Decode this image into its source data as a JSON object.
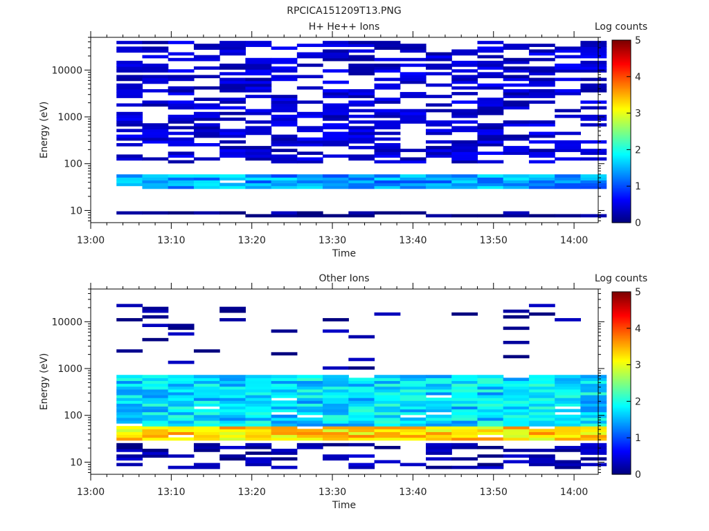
{
  "figure_title": "RPCICA151209T13.PNG",
  "colorbar_label": "Log counts",
  "colorbar_ticks": [
    "0",
    "1",
    "2",
    "3",
    "4",
    "5"
  ],
  "chart_data": [
    {
      "type": "heatmap",
      "title": "H+ He++ Ions",
      "xlabel": "Time",
      "ylabel": "Energy (eV)",
      "x_ticks": [
        "13:00",
        "13:10",
        "13:20",
        "13:30",
        "13:40",
        "13:50",
        "14:00"
      ],
      "xlim_minutes": [
        0,
        63
      ],
      "y_scale": "log",
      "y_ticks": [
        "10",
        "100",
        "1000",
        "10000"
      ],
      "ylim": [
        5.5,
        50000
      ],
      "colorscale": "jet",
      "zlim": [
        0,
        5
      ],
      "time_bins_minutes": [
        3.2,
        6.4,
        9.6,
        12.8,
        16.0,
        19.2,
        22.4,
        25.6,
        28.8,
        32.0,
        35.2,
        38.4,
        41.6,
        44.8,
        48.0,
        51.2,
        54.4,
        57.6,
        60.8
      ],
      "energy_range_eV": [
        5.5,
        42000
      ],
      "features": [
        {
          "energy_eV": [
            7,
            9
          ],
          "log_counts": 0.1,
          "coverage": "patchy"
        },
        {
          "energy_eV": [
            30,
            60
          ],
          "log_counts": 1.4,
          "coverage": "band"
        },
        {
          "energy_eV": [
            100,
            40000
          ],
          "log_counts": 0.4,
          "coverage": "striated"
        }
      ]
    },
    {
      "type": "heatmap",
      "title": "Other Ions",
      "xlabel": "Time",
      "ylabel": "Energy (eV)",
      "x_ticks": [
        "13:00",
        "13:10",
        "13:20",
        "13:30",
        "13:40",
        "13:50",
        "14:00"
      ],
      "xlim_minutes": [
        0,
        63
      ],
      "y_scale": "log",
      "y_ticks": [
        "10",
        "100",
        "1000",
        "10000"
      ],
      "ylim": [
        5.5,
        50000
      ],
      "colorscale": "jet",
      "zlim": [
        0,
        5
      ],
      "time_bins_minutes": [
        3.2,
        6.4,
        9.6,
        12.8,
        16.0,
        19.2,
        22.4,
        25.6,
        28.8,
        32.0,
        35.2,
        38.4,
        41.6,
        44.8,
        48.0,
        51.2,
        54.4,
        57.6,
        60.8
      ],
      "energy_range_eV": [
        5.5,
        42000
      ],
      "features": [
        {
          "energy_eV": [
            7,
            25
          ],
          "log_counts": 0.2,
          "coverage": "patchy"
        },
        {
          "energy_eV": [
            30,
            60
          ],
          "log_counts": 3.3,
          "coverage": "band"
        },
        {
          "energy_eV": [
            60,
            700
          ],
          "log_counts": 1.7,
          "coverage": "band"
        },
        {
          "energy_eV": [
            1000,
            30000
          ],
          "log_counts": 0.1,
          "coverage": "sparse"
        }
      ]
    }
  ]
}
